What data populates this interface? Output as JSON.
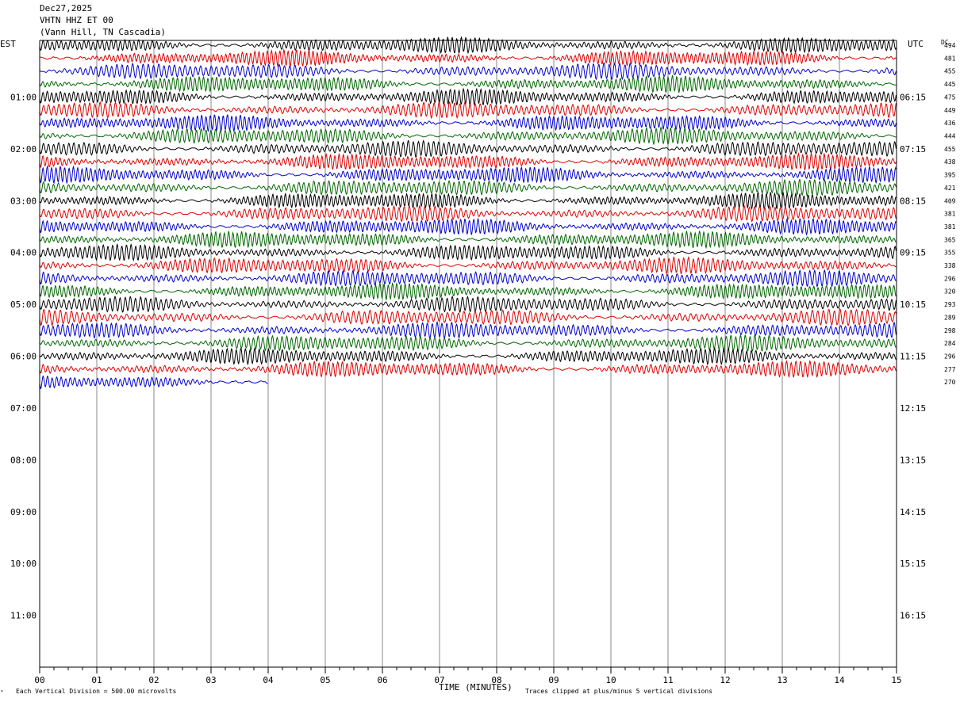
{
  "header": {
    "date": "Dec27,2025",
    "station": "VHTN HHZ ET 00",
    "location": "(Vann Hill, TN Cascadia)"
  },
  "left_tz": "EST",
  "right_tz": "UTC",
  "dc_label": "DC",
  "colors": {
    "trace_cycle": [
      "#000000",
      "#dd0000",
      "#0000cc",
      "#006600"
    ],
    "gridline": "#888888",
    "axis": "#000000"
  },
  "chart_data": {
    "type": "line",
    "title": "",
    "xlabel": "TIME (MINUTES)",
    "ylabel": "",
    "x_ticks": [
      "00",
      "01",
      "02",
      "03",
      "04",
      "05",
      "06",
      "07",
      "08",
      "09",
      "10",
      "11",
      "12",
      "13",
      "14",
      "15"
    ],
    "xlim": [
      0,
      15
    ],
    "left_hour_labels": [
      "01:00",
      "02:00",
      "03:00",
      "04:00",
      "05:00",
      "06:00",
      "07:00",
      "08:00",
      "09:00",
      "10:00",
      "11:00"
    ],
    "right_hour_labels": [
      "06:15",
      "07:15",
      "08:15",
      "09:15",
      "10:15",
      "11:15",
      "12:15",
      "13:15",
      "14:15",
      "15:15",
      "16:15"
    ],
    "dc_offsets": [
      "494",
      "481",
      "455",
      "445",
      "475",
      "449",
      "436",
      "444",
      "455",
      "438",
      "395",
      "421",
      "409",
      "381",
      "381",
      "365",
      "355",
      "338",
      "296",
      "320",
      "293",
      "289",
      "298",
      "284",
      "296",
      "277",
      "270"
    ],
    "rows_per_hour": 4,
    "total_rows_full": 48,
    "last_row_minutes": 4.0,
    "grid": true
  },
  "footer": {
    "scale_note": "Each Vertical Division =  500.00 microvolts",
    "clip_note": "Traces clipped at plus/minus 5 vertical divisions"
  }
}
